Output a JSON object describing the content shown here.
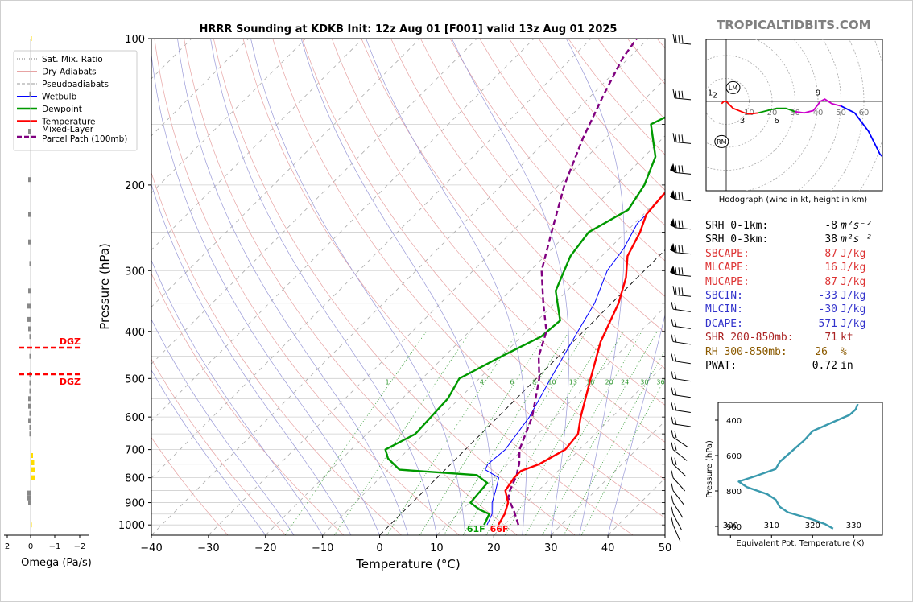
{
  "brand": "TROPICALTIDBITS.COM",
  "chart_data": [
    {
      "type": "line",
      "subtype": "skew-t log-p sounding",
      "title": "HRRR Sounding at KDKB Init: 12z Aug 01 [F001] valid 13z Aug 01 2025",
      "xlabel": "Temperature (°C)",
      "ylabel": "Pressure (hPa)",
      "xlim": [
        -40,
        50
      ],
      "ylim": [
        1050,
        100
      ],
      "log_y": true,
      "x_ticks": [
        "−40",
        "−30",
        "−20",
        "−10",
        "0",
        "10",
        "20",
        "30",
        "40",
        "50"
      ],
      "y_ticks": [
        "100",
        "200",
        "300",
        "400",
        "500",
        "600",
        "700",
        "800",
        "900",
        "1000"
      ],
      "legend_position": "upper-left",
      "legend": [
        "Sat. Mix. Ratio",
        "Dry Adiabats",
        "Pseudoadiabats",
        "Wetbulb",
        "Dewpoint",
        "Temperature",
        "Mixed-Layer\nParcel Path (100mb)"
      ],
      "mixing_ratio_labels": [
        "1",
        "4",
        "6",
        "8",
        "10",
        "13",
        "16",
        "20",
        "24",
        "30",
        "36"
      ],
      "surface_labels": {
        "dewpoint": "61F",
        "temperature": "66F"
      },
      "series": [
        {
          "name": "Temperature",
          "color": "#ff0000",
          "points": [
            [
              19,
              1000
            ],
            [
              18.2,
              950
            ],
            [
              16.8,
              900
            ],
            [
              14.2,
              850
            ],
            [
              13.5,
              800
            ],
            [
              13.5,
              775
            ],
            [
              15.5,
              750
            ],
            [
              17.5,
              700
            ],
            [
              17,
              650
            ],
            [
              14.5,
              600
            ],
            [
              9.5,
              500
            ],
            [
              4.8,
              420
            ],
            [
              1.2,
              350
            ],
            [
              -2,
              310
            ],
            [
              -5.5,
              280
            ],
            [
              -7.5,
              250
            ],
            [
              -9.5,
              230
            ],
            [
              -10,
              210
            ],
            [
              -10,
              175
            ],
            [
              -8.5,
              155
            ],
            [
              -5,
              130
            ],
            [
              -2.5,
              115
            ],
            [
              1.5,
              100
            ]
          ]
        },
        {
          "name": "Dewpoint",
          "color": "#009900",
          "points": [
            [
              16.5,
              1000
            ],
            [
              15.5,
              950
            ],
            [
              13,
              930
            ],
            [
              10.2,
              900
            ],
            [
              9.7,
              820
            ],
            [
              6.5,
              790
            ],
            [
              -8,
              770
            ],
            [
              -12,
              730
            ],
            [
              -14,
              700
            ],
            [
              -11.5,
              650
            ],
            [
              -12,
              550
            ],
            [
              -13.5,
              500
            ],
            [
              -10,
              450
            ],
            [
              -6.5,
              410
            ],
            [
              -6,
              380
            ],
            [
              -12,
              330
            ],
            [
              -15.5,
              280
            ],
            [
              -16.5,
              250
            ],
            [
              -13.5,
              225
            ],
            [
              -15,
              200
            ],
            [
              -18,
              175
            ],
            [
              -24.5,
              150
            ],
            [
              -19,
              130
            ],
            [
              -20,
              115
            ],
            [
              -17.5,
              100
            ]
          ]
        },
        {
          "name": "Wetbulb",
          "color": "#0000ff",
          "points": [
            [
              17,
              1000
            ],
            [
              16,
              950
            ],
            [
              14,
              900
            ],
            [
              12.5,
              850
            ],
            [
              10.8,
              800
            ],
            [
              7,
              770
            ],
            [
              6.5,
              750
            ],
            [
              7,
              700
            ],
            [
              5.5,
              600
            ],
            [
              2.5,
              500
            ],
            [
              0.5,
              440
            ],
            [
              -1,
              400
            ],
            [
              -3,
              350
            ],
            [
              -6.5,
              300
            ],
            [
              -7.5,
              270
            ],
            [
              -9.5,
              240
            ],
            [
              -9.5,
              230
            ],
            [
              -10,
              210
            ],
            [
              -10,
              175
            ],
            [
              -8.5,
              155
            ],
            [
              -5,
              130
            ],
            [
              -2.5,
              115
            ],
            [
              1.5,
              100
            ]
          ]
        },
        {
          "name": "Mixed-Layer\nParcel Path (100mb)",
          "color": "#800080",
          "points": [
            [
              22.5,
              1000
            ],
            [
              19.5,
              940
            ],
            [
              16,
              880
            ],
            [
              15,
              850
            ],
            [
              13.5,
              790
            ],
            [
              12.5,
              765
            ],
            [
              12,
              750
            ],
            [
              9.5,
              700
            ],
            [
              6,
              600
            ],
            [
              0.5,
              500
            ],
            [
              -3.5,
              450
            ],
            [
              -6.5,
              400
            ],
            [
              -12,
              350
            ],
            [
              -18,
              300
            ],
            [
              -23,
              250
            ],
            [
              -29,
              200
            ],
            [
              -34,
              160
            ],
            [
              -38,
              130
            ],
            [
              -41,
              110
            ],
            [
              -42,
              100
            ]
          ]
        }
      ]
    },
    {
      "type": "line",
      "subtype": "omega profile",
      "xlabel": "Omega (Pa/s)",
      "x_ticks": [
        "2",
        "0",
        "−1",
        "−2"
      ],
      "annotations": [
        "DGZ",
        "DGZ"
      ]
    },
    {
      "type": "line",
      "subtype": "hodograph",
      "caption": "Hodograph (wind in kt, height in km)",
      "ring_labels": [
        "10",
        "20",
        "30",
        "40",
        "50",
        "60"
      ],
      "markers": [
        "LM",
        "RM"
      ],
      "height_labels": [
        "1",
        "2",
        "3",
        "6",
        "9"
      ],
      "points_kt": [
        [
          -2,
          -1
        ],
        [
          -1,
          0
        ],
        [
          0,
          0
        ],
        [
          3,
          -3
        ],
        [
          8,
          -5
        ],
        [
          10,
          -5.5
        ],
        [
          14,
          -5
        ],
        [
          18,
          -4
        ],
        [
          22,
          -3
        ],
        [
          26,
          -3
        ],
        [
          30,
          -4.5
        ],
        [
          34,
          -5
        ],
        [
          38,
          -4
        ],
        [
          41,
          0
        ],
        [
          43,
          1
        ],
        [
          46,
          -1
        ],
        [
          50,
          -2
        ],
        [
          56,
          -5
        ],
        [
          62,
          -13
        ],
        [
          67,
          -23
        ],
        [
          68,
          -24
        ],
        [
          71,
          -16
        ],
        [
          72,
          -8
        ]
      ]
    },
    {
      "type": "line",
      "subtype": "theta-e profile",
      "xlabel": "Equivalent Pot. Temperature (K)",
      "ylabel": "Pressure (hPa)",
      "x_ticks": [
        "300",
        "310",
        "320",
        "330"
      ],
      "y_ticks": [
        "400",
        "600",
        "800",
        "900"
      ],
      "series": [
        {
          "name": "Equivalent Pot. Temperature",
          "color": "#3a9aae",
          "points": [
            [
              331,
              300
            ],
            [
              330.5,
              330
            ],
            [
              329,
              360
            ],
            [
              325,
              400
            ],
            [
              320,
              450
            ],
            [
              318,
              500
            ],
            [
              315,
              560
            ],
            [
              312,
              620
            ],
            [
              311,
              660
            ],
            [
              306,
              700
            ],
            [
              302,
              730
            ],
            [
              304,
              760
            ],
            [
              309,
              800
            ],
            [
              311,
              830
            ],
            [
              312,
              870
            ],
            [
              314,
              900
            ],
            [
              320,
              940
            ],
            [
              323,
              965
            ],
            [
              325,
              990
            ]
          ]
        }
      ]
    }
  ],
  "params": {
    "rows": [
      {
        "label": "SRH 0-1km:",
        "value": "-8",
        "unit": "m²s⁻²",
        "color": "#000000"
      },
      {
        "label": "SRH 0-3km:",
        "value": "38",
        "unit": "m²s⁻²",
        "color": "#000000"
      },
      {
        "label": "SBCAPE:",
        "value": "87",
        "unit": "J/kg",
        "color": "#dd3333"
      },
      {
        "label": "MLCAPE:",
        "value": "16",
        "unit": "J/kg",
        "color": "#dd3333"
      },
      {
        "label": "MUCAPE:",
        "value": "87",
        "unit": "J/kg",
        "color": "#dd3333"
      },
      {
        "label": "SBCIN:",
        "value": "-33",
        "unit": "J/kg",
        "color": "#3333cc"
      },
      {
        "label": "MLCIN:",
        "value": "-30",
        "unit": "J/kg",
        "color": "#3333cc"
      },
      {
        "label": "DCAPE:",
        "value": "571",
        "unit": "J/kg",
        "color": "#3333cc"
      },
      {
        "label": "SHR 200-850mb:",
        "value": "71",
        "unit": "kt",
        "color": "#aa2222"
      },
      {
        "label": "RH 300-850mb:",
        "value": "26",
        "unit": "%",
        "color": "#8b5a00"
      },
      {
        "label": "PWAT:",
        "value": "0.72",
        "unit": "in",
        "color": "#000000"
      }
    ]
  },
  "colors": {
    "temperature": "#ff0000",
    "dewpoint": "#009900",
    "wetbulb": "#0000ff",
    "parcel": "#800080",
    "thetae": "#3a9aae",
    "dgz": "#ff0000",
    "brand": "#808080"
  }
}
